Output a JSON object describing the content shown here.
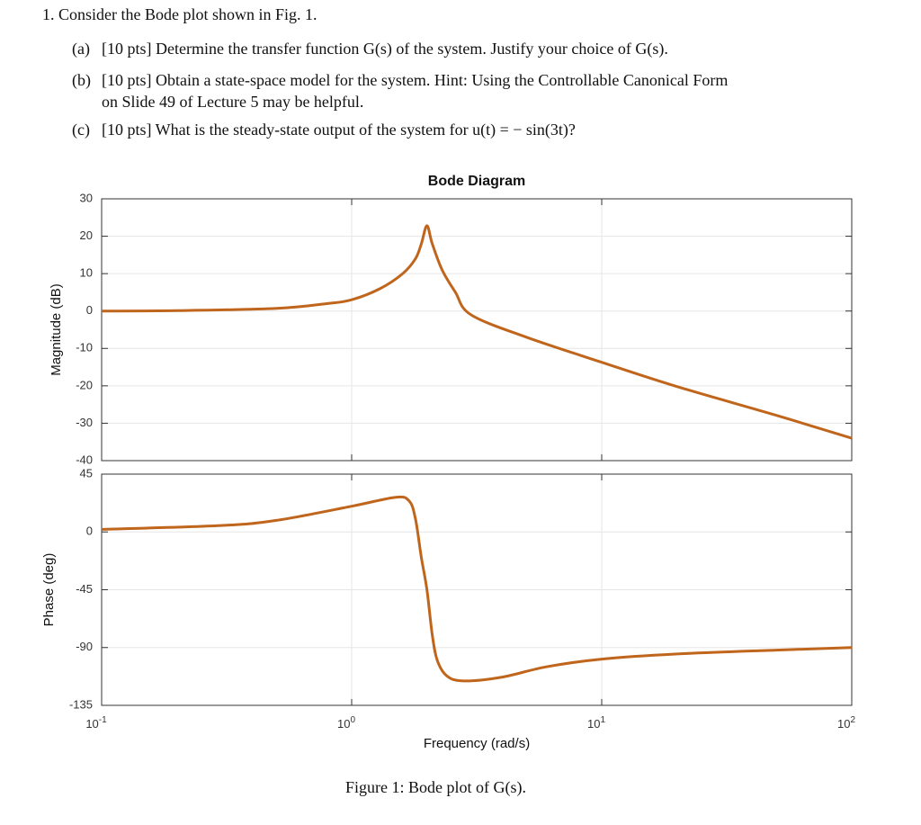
{
  "problem": {
    "heading": "1. Consider the Bode plot shown in Fig. 1.",
    "parts": [
      {
        "label": "(a)",
        "lines": [
          "[10 pts] Determine the transfer function G(s) of the system. Justify your choice of G(s)."
        ]
      },
      {
        "label": "(b)",
        "lines": [
          "[10 pts] Obtain a state-space model for the system. Hint: Using the Controllable Canonical Form",
          "on Slide 49 of Lecture 5 may be helpful."
        ]
      },
      {
        "label": "(c)",
        "lines": [
          "[10 pts] What is the steady-state output of the system for u(t) = − sin(3t)?"
        ]
      }
    ],
    "caption": "Figure 1: Bode plot of G(s)."
  },
  "chart_data": [
    {
      "type": "line",
      "title": "Bode Diagram",
      "ylabel": "Magnitude (dB)",
      "xscale": "log",
      "grid": true,
      "xlim": [
        0.1,
        100
      ],
      "xticks": [
        0.1,
        1,
        10,
        100
      ],
      "ylim": [
        -40,
        30
      ],
      "yticks": [
        30,
        20,
        10,
        0,
        -10,
        -20,
        -30,
        -40
      ],
      "x": [
        0.1,
        0.2,
        0.5,
        0.8,
        1,
        1.3,
        1.6,
        1.8,
        1.9,
        2,
        2.1,
        2.3,
        2.6,
        3,
        5,
        10,
        20,
        50,
        100
      ],
      "series": [
        {
          "color": "#c0651c",
          "values": [
            0,
            0.1,
            0.7,
            2,
            3,
            6,
            10,
            14,
            18,
            22.8,
            18,
            11,
            5,
            -1,
            -7,
            -13.7,
            -20.2,
            -27.9,
            -34
          ]
        }
      ]
    },
    {
      "type": "line",
      "ylabel": "Phase (deg)",
      "xlabel": "Frequency (rad/s)",
      "xscale": "log",
      "grid": true,
      "xlim": [
        0.1,
        100
      ],
      "xticks": [
        {
          "value": 0.1,
          "label": "10",
          "exponent": "-1"
        },
        {
          "value": 1,
          "label": "10",
          "exponent": "0"
        },
        {
          "value": 10,
          "label": "10",
          "exponent": "1"
        },
        {
          "value": 100,
          "label": "10",
          "exponent": "2"
        }
      ],
      "ylim": [
        -135,
        45
      ],
      "yticks": [
        45,
        0,
        -45,
        -90,
        -135
      ],
      "x": [
        0.1,
        0.3,
        0.5,
        1,
        1.5,
        1.7,
        1.8,
        1.9,
        2,
        2.1,
        2.2,
        2.4,
        2.8,
        4,
        6,
        10,
        20,
        50,
        100
      ],
      "series": [
        {
          "color": "#c0651c",
          "values": [
            2,
            5,
            9,
            20,
            27,
            24,
            10,
            -20,
            -45,
            -80,
            -100,
            -112,
            -116,
            -113,
            -105,
            -99,
            -95,
            -92,
            -90
          ]
        }
      ]
    }
  ]
}
